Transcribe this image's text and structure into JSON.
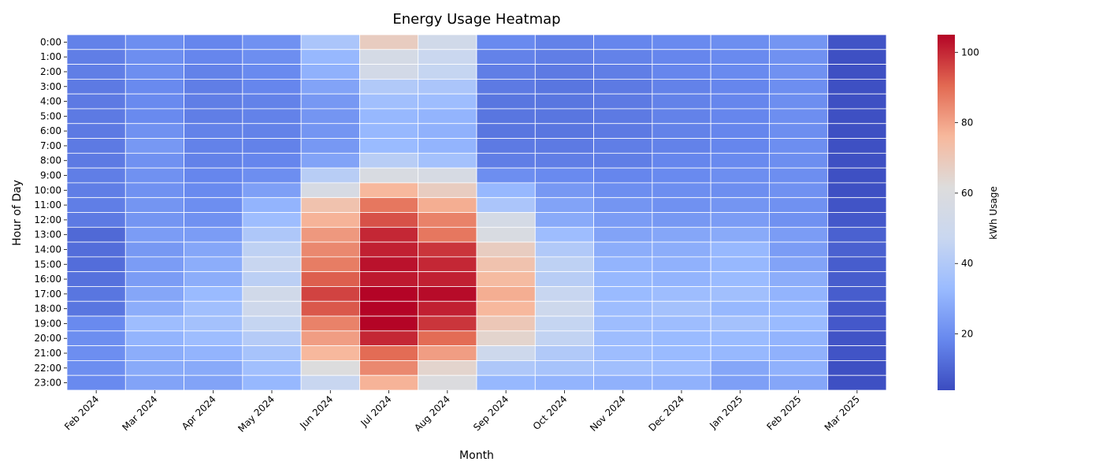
{
  "chart_data": {
    "type": "heatmap",
    "title": "Energy Usage Heatmap",
    "xlabel": "Month",
    "ylabel": "Hour of Day",
    "colorbar_label": "kWh Usage",
    "colormap": "coolwarm",
    "vmin": 4,
    "vmax": 105,
    "colorbar_ticks": [
      20,
      40,
      60,
      80,
      100
    ],
    "colorbar_stops": [
      "#3b4cc0",
      "#6788ee",
      "#9abbff",
      "#c9d7f0",
      "#dddcdc",
      "#f7b89c",
      "#e26952",
      "#b40426"
    ],
    "grid_line_color": "#ffffff",
    "months": [
      "Feb 2024",
      "Mar 2024",
      "Apr 2024",
      "May 2024",
      "Jun 2024",
      "Jul 2024",
      "Aug 2024",
      "Sep 2024",
      "Oct 2024",
      "Nov 2024",
      "Dec 2024",
      "Jan 2025",
      "Feb 2025",
      "Mar 2025"
    ],
    "hours": [
      "0:00",
      "1:00",
      "2:00",
      "3:00",
      "4:00",
      "5:00",
      "6:00",
      "7:00",
      "8:00",
      "9:00",
      "10:00",
      "11:00",
      "12:00",
      "13:00",
      "14:00",
      "15:00",
      "16:00",
      "17:00",
      "18:00",
      "19:00",
      "20:00",
      "21:00",
      "22:00",
      "23:00"
    ],
    "values": [
      [
        17,
        20,
        18,
        21,
        38,
        68,
        52,
        19,
        17,
        18,
        19,
        20,
        22,
        6
      ],
      [
        16,
        20,
        18,
        20,
        32,
        55,
        48,
        17,
        16,
        17,
        18,
        19,
        21,
        5
      ],
      [
        16,
        20,
        17,
        19,
        30,
        54,
        46,
        16,
        15,
        16,
        18,
        19,
        21,
        5
      ],
      [
        15,
        19,
        16,
        18,
        26,
        40,
        38,
        15,
        14,
        15,
        17,
        18,
        20,
        5
      ],
      [
        15,
        19,
        16,
        17,
        23,
        35,
        34,
        14,
        14,
        15,
        17,
        18,
        20,
        5
      ],
      [
        15,
        19,
        16,
        17,
        22,
        32,
        31,
        14,
        14,
        15,
        17,
        18,
        20,
        5
      ],
      [
        15,
        21,
        17,
        17,
        22,
        32,
        30,
        14,
        14,
        15,
        17,
        18,
        20,
        5
      ],
      [
        15,
        23,
        17,
        17,
        23,
        33,
        31,
        15,
        15,
        16,
        17,
        18,
        20,
        5
      ],
      [
        15,
        21,
        17,
        18,
        26,
        42,
        36,
        16,
        16,
        16,
        18,
        19,
        20,
        5
      ],
      [
        16,
        21,
        18,
        20,
        42,
        58,
        57,
        20,
        19,
        18,
        19,
        20,
        20,
        5
      ],
      [
        16,
        21,
        19,
        25,
        57,
        76,
        68,
        32,
        23,
        20,
        20,
        20,
        21,
        5
      ],
      [
        16,
        22,
        20,
        31,
        72,
        88,
        78,
        38,
        26,
        22,
        21,
        22,
        21,
        6
      ],
      [
        15,
        22,
        21,
        34,
        77,
        94,
        86,
        55,
        28,
        24,
        23,
        24,
        21,
        7
      ],
      [
        11,
        24,
        24,
        39,
        82,
        100,
        88,
        58,
        34,
        26,
        27,
        28,
        24,
        9
      ],
      [
        12,
        23,
        27,
        44,
        85,
        101,
        98,
        68,
        40,
        29,
        29,
        32,
        24,
        9
      ],
      [
        12,
        24,
        29,
        47,
        87,
        103,
        100,
        72,
        44,
        31,
        30,
        32,
        26,
        8
      ],
      [
        13,
        24,
        29,
        43,
        92,
        102,
        101,
        75,
        42,
        32,
        31,
        33,
        29,
        8
      ],
      [
        14,
        27,
        33,
        52,
        96,
        106,
        104,
        78,
        47,
        33,
        34,
        35,
        31,
        8
      ],
      [
        14,
        29,
        35,
        51,
        93,
        106,
        101,
        76,
        50,
        34,
        36,
        32,
        32,
        7
      ],
      [
        19,
        34,
        36,
        46,
        86,
        107,
        98,
        70,
        46,
        34,
        34,
        36,
        33,
        7
      ],
      [
        20,
        31,
        34,
        41,
        81,
        100,
        90,
        65,
        45,
        34,
        33,
        33,
        31,
        6
      ],
      [
        20,
        29,
        31,
        37,
        76,
        90,
        81,
        50,
        40,
        34,
        33,
        32,
        30,
        6
      ],
      [
        20,
        28,
        28,
        35,
        61,
        85,
        65,
        39,
        37,
        35,
        34,
        27,
        30,
        5
      ],
      [
        19,
        26,
        26,
        32,
        47,
        77,
        60,
        32,
        31,
        30,
        30,
        25,
        27,
        5
      ]
    ]
  }
}
